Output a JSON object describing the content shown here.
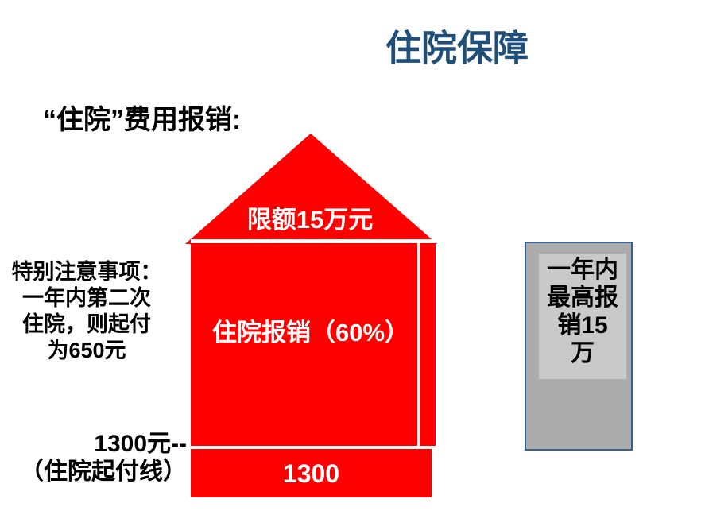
{
  "slide": {
    "title": "住院保障",
    "heading": "“住院”费用报销:",
    "left_note": "特别注意事项：\n一年内第二次\n住院，则起付\n为650元",
    "deductible_label": "1300元--\n（住院起付线）",
    "house": {
      "roof_label": "限额15万元",
      "body_label": "住院报销（60%）",
      "base_label": "1300"
    },
    "annual_max_panel": {
      "text": "一年内\n最高报\n销15\n万"
    },
    "colors": {
      "house_red": "#FF0000",
      "title_blue": "#1F4E79",
      "panel_gray": "#ACACAC",
      "panel_inner_gray": "#C9C9C9",
      "panel_border_blue": "#376092",
      "text_black": "#000000",
      "house_text_white": "#FFFFFF"
    }
  }
}
